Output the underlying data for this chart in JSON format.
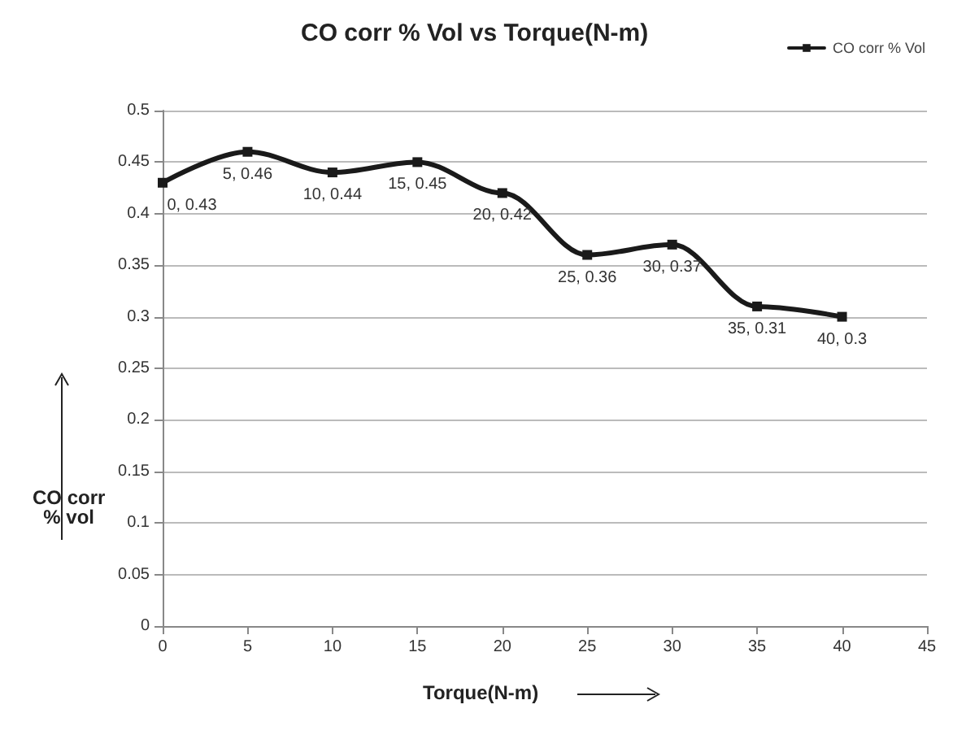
{
  "chart_data": {
    "type": "line",
    "title": "CO corr % Vol vs Torque(N-m)",
    "xlabel": "Torque(N-m)",
    "ylabel": "CO corr\n% vol",
    "x": [
      0,
      5,
      10,
      15,
      20,
      25,
      30,
      35,
      40
    ],
    "series": [
      {
        "name": "CO corr % Vol",
        "color": "#1a1a1a",
        "values": [
          0.43,
          0.46,
          0.44,
          0.45,
          0.42,
          0.36,
          0.37,
          0.31,
          0.3
        ],
        "value_labels": [
          "0, 0.43",
          "5, 0.46",
          "10, 0.44",
          "15, 0.45",
          "20, 0.42",
          "25, 0.36",
          "30, 0.37",
          "35, 0.31",
          "40, 0.3"
        ]
      }
    ],
    "xlim": [
      0,
      45
    ],
    "xticks": [
      0,
      5,
      10,
      15,
      20,
      25,
      30,
      35,
      40,
      45
    ],
    "ylim": [
      0,
      0.5
    ],
    "yticks": [
      0,
      0.05,
      0.1,
      0.15,
      0.2,
      0.25,
      0.3,
      0.35,
      0.4,
      0.45,
      0.5
    ],
    "grid": "y",
    "legend": "top right",
    "marker": "square",
    "line_style": "solid"
  }
}
